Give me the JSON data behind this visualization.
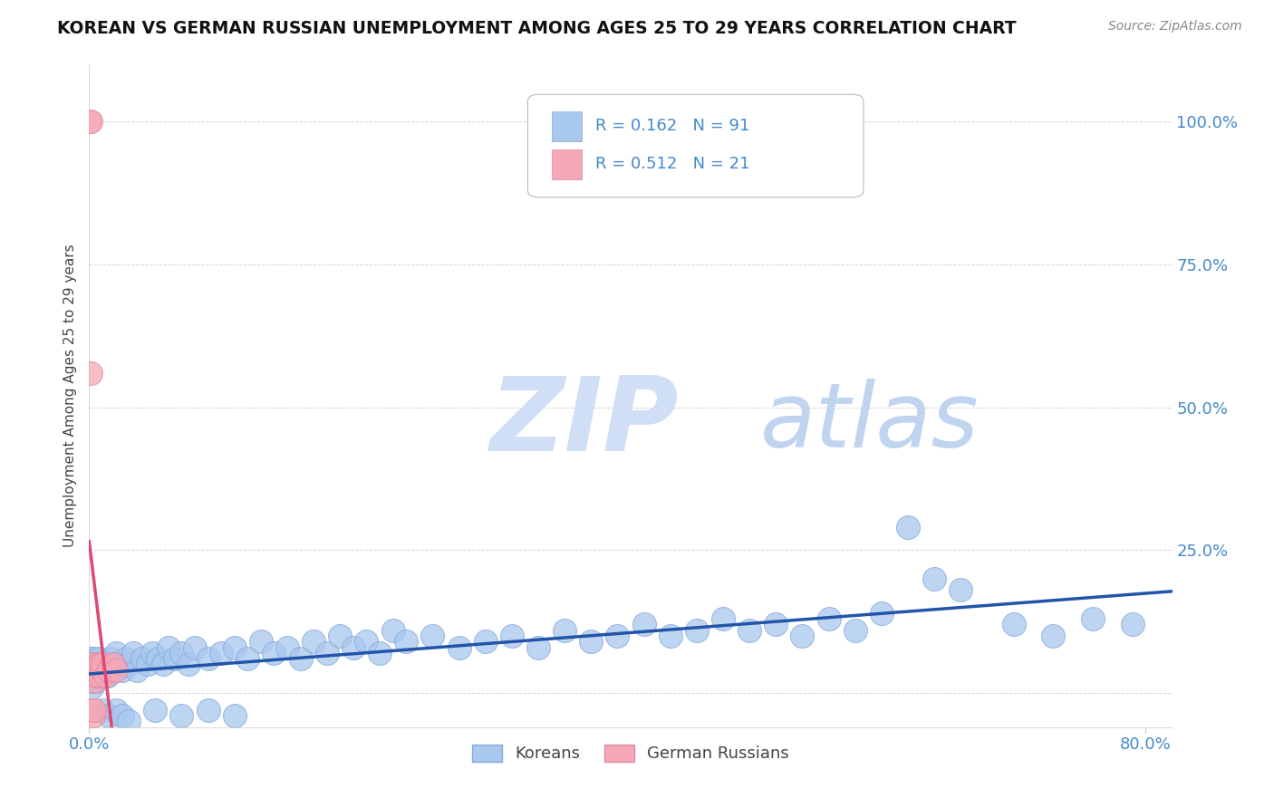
{
  "title": "KOREAN VS GERMAN RUSSIAN UNEMPLOYMENT AMONG AGES 25 TO 29 YEARS CORRELATION CHART",
  "source": "Source: ZipAtlas.com",
  "ylabel": "Unemployment Among Ages 25 to 29 years",
  "xlim": [
    0.0,
    0.82
  ],
  "ylim": [
    -0.06,
    1.1
  ],
  "ytick_positions": [
    0.0,
    0.25,
    0.5,
    0.75,
    1.0
  ],
  "ytick_labels": [
    "",
    "25.0%",
    "50.0%",
    "75.0%",
    "100.0%"
  ],
  "korean_R": 0.162,
  "korean_N": 91,
  "german_russian_R": 0.512,
  "german_russian_N": 21,
  "blue_color": "#A8C8EE",
  "pink_color": "#F4A8B8",
  "blue_edge_color": "#88AADA",
  "pink_edge_color": "#E088A0",
  "blue_line_color": "#2255AA",
  "pink_line_color": "#E04870",
  "pink_dash_color": "#EAA0B0",
  "watermark_zip_color": "#D0DFF5",
  "watermark_atlas_color": "#C0D4F0",
  "legend_text_color": "#333333",
  "legend_value_color": "#4488CC",
  "background_color": "#FFFFFF",
  "grid_color": "#CCCCCC",
  "title_color": "#111111",
  "tick_label_color": "#4488CC",
  "source_color": "#888888",
  "korean_x": [
    0.001,
    0.001,
    0.001,
    0.002,
    0.002,
    0.002,
    0.003,
    0.003,
    0.003,
    0.004,
    0.004,
    0.005,
    0.005,
    0.006,
    0.006,
    0.007,
    0.007,
    0.008,
    0.009,
    0.01,
    0.012,
    0.014,
    0.016,
    0.018,
    0.02,
    0.022,
    0.025,
    0.028,
    0.03,
    0.033,
    0.036,
    0.04,
    0.044,
    0.048,
    0.052,
    0.056,
    0.06,
    0.065,
    0.07,
    0.075,
    0.08,
    0.09,
    0.1,
    0.11,
    0.12,
    0.13,
    0.14,
    0.15,
    0.16,
    0.17,
    0.18,
    0.19,
    0.2,
    0.21,
    0.22,
    0.23,
    0.24,
    0.26,
    0.28,
    0.3,
    0.32,
    0.34,
    0.36,
    0.38,
    0.4,
    0.42,
    0.44,
    0.46,
    0.48,
    0.5,
    0.52,
    0.54,
    0.56,
    0.58,
    0.6,
    0.62,
    0.64,
    0.66,
    0.7,
    0.73,
    0.76,
    0.79,
    0.01,
    0.015,
    0.02,
    0.025,
    0.03,
    0.05,
    0.07,
    0.09,
    0.11
  ],
  "korean_y": [
    0.04,
    0.02,
    0.06,
    0.03,
    0.05,
    0.01,
    0.04,
    0.02,
    0.06,
    0.03,
    0.05,
    0.04,
    0.02,
    0.05,
    0.03,
    0.04,
    0.06,
    0.03,
    0.05,
    0.04,
    0.05,
    0.03,
    0.06,
    0.04,
    0.07,
    0.05,
    0.04,
    0.06,
    0.05,
    0.07,
    0.04,
    0.06,
    0.05,
    0.07,
    0.06,
    0.05,
    0.08,
    0.06,
    0.07,
    0.05,
    0.08,
    0.06,
    0.07,
    0.08,
    0.06,
    0.09,
    0.07,
    0.08,
    0.06,
    0.09,
    0.07,
    0.1,
    0.08,
    0.09,
    0.07,
    0.11,
    0.09,
    0.1,
    0.08,
    0.09,
    0.1,
    0.08,
    0.11,
    0.09,
    0.1,
    0.12,
    0.1,
    0.11,
    0.13,
    0.11,
    0.12,
    0.1,
    0.13,
    0.11,
    0.14,
    0.29,
    0.2,
    0.18,
    0.12,
    0.1,
    0.13,
    0.12,
    -0.03,
    -0.04,
    -0.03,
    -0.04,
    -0.05,
    -0.03,
    -0.04,
    -0.03,
    -0.04
  ],
  "german_russian_x": [
    0.0005,
    0.0008,
    0.001,
    0.001,
    0.0015,
    0.002,
    0.002,
    0.003,
    0.003,
    0.004,
    0.004,
    0.005,
    0.006,
    0.007,
    0.008,
    0.009,
    0.01,
    0.012,
    0.015,
    0.018,
    0.02
  ],
  "german_russian_y": [
    1.0,
    1.0,
    0.56,
    0.04,
    0.05,
    0.03,
    -0.03,
    0.04,
    -0.04,
    0.02,
    -0.03,
    0.03,
    0.04,
    0.05,
    0.03,
    0.04,
    0.05,
    0.03,
    0.04,
    0.05,
    0.04
  ],
  "gr_trend_x0": 0.0,
  "gr_trend_x1": 0.022,
  "gr_trend_dash_x0": 0.0,
  "gr_trend_dash_x1": 0.022
}
